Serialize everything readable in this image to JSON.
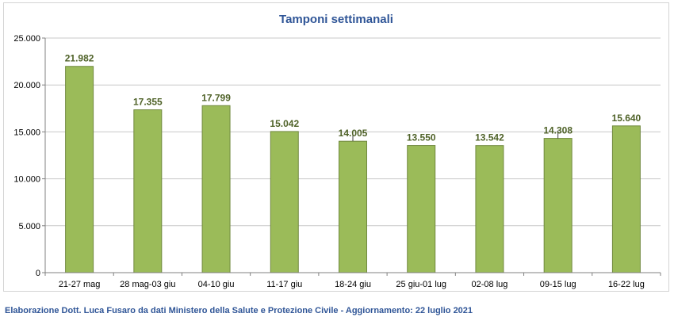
{
  "chart_data": {
    "type": "bar",
    "title": "Tamponi settimanali",
    "categories": [
      "21-27 mag",
      "28 mag-03 giu",
      "04-10 giu",
      "11-17 giu",
      "18-24 giu",
      "25 giu-01 lug",
      "02-08 lug",
      "09-15 lug",
      "16-22 lug"
    ],
    "values": [
      21982,
      17355,
      17799,
      15042,
      14005,
      13550,
      13542,
      14308,
      15640
    ],
    "value_labels": [
      "21.982",
      "17.355",
      "17.799",
      "15.042",
      "14.005",
      "13.550",
      "13.542",
      "14.308",
      "15.640"
    ],
    "yticks": [
      0,
      5000,
      10000,
      15000,
      20000,
      25000
    ],
    "ytick_labels": [
      "0",
      "5.000",
      "10.000",
      "15.000",
      "20.000",
      "25.000"
    ],
    "ylim": [
      0,
      25000
    ],
    "xlabel": "",
    "ylabel": "",
    "grid": true,
    "bar_color": "#9bbb59",
    "bar_border": "#71893f",
    "label_color": "#4f6228"
  },
  "caption": "Elaborazione Dott. Luca Fusaro da dati Ministero della Salute e Protezione Civile - Aggiornamento: 22 luglio 2021"
}
